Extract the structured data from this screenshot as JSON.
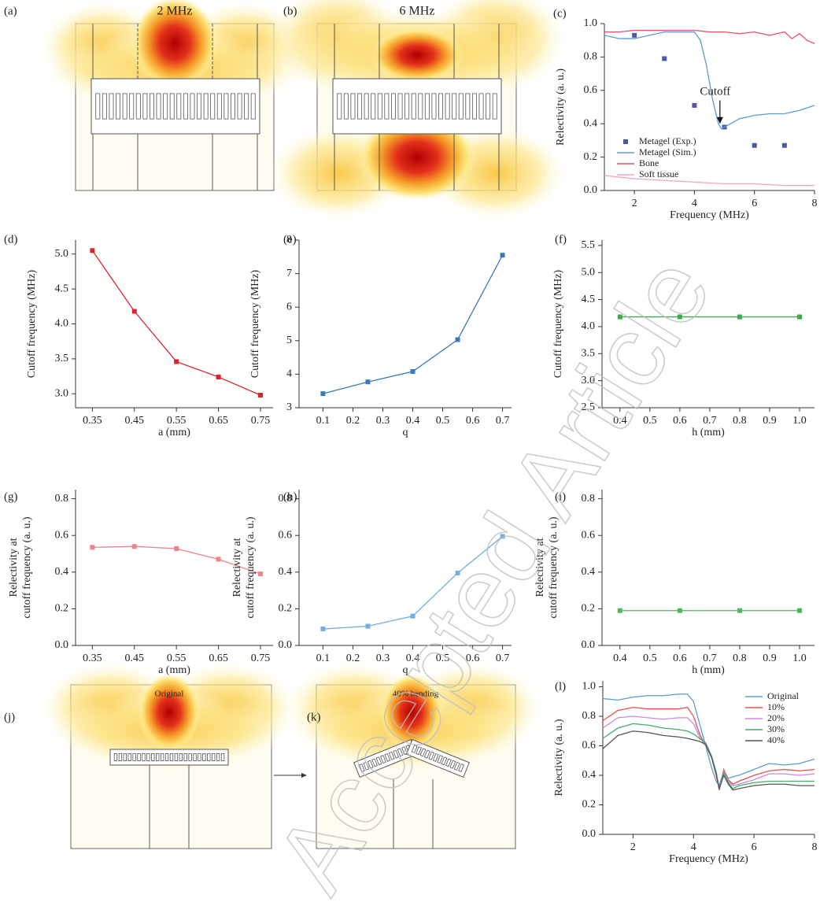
{
  "images": [
    {
      "panel": "(a)",
      "title": "2 MHz"
    },
    {
      "panel": "(b)",
      "title": "6 MHz"
    },
    {
      "panel": "(j)",
      "title": "Original"
    },
    {
      "panel": "(k)",
      "title": "40% bending"
    }
  ],
  "watermark": "Accepted Article",
  "chart_data": [
    {
      "panel": "(c)",
      "type": "line",
      "xlabel": "Frequency (MHz)",
      "ylabel": "Relectivity (a. u.)",
      "xlim": [
        1,
        8
      ],
      "ylim": [
        0,
        1.0
      ],
      "xticks": [
        2,
        4,
        6,
        8
      ],
      "yticks": [
        {
          "value": 0,
          "label": "0.0"
        },
        0.2,
        0.4,
        0.6,
        0.8,
        {
          "value": 1,
          "label": "1.0"
        }
      ],
      "legend": "lower left",
      "annotation": "Cutoff",
      "series": [
        {
          "name": "Metagel (Exp.)",
          "color": "#4a5aa8",
          "style": "markers",
          "x": [
            2,
            3,
            4,
            5,
            6,
            7
          ],
          "values": [
            0.93,
            0.79,
            0.51,
            0.38,
            0.27,
            0.27
          ]
        },
        {
          "name": "Metagel (Sim.)",
          "color": "#5b9bd5",
          "x": [
            1,
            1.5,
            2,
            2.5,
            3,
            3.5,
            4,
            4.2,
            4.4,
            4.6,
            4.8,
            4.9,
            5,
            5.2,
            5.5,
            6,
            6.5,
            7,
            7.5,
            8
          ],
          "values": [
            0.93,
            0.91,
            0.91,
            0.93,
            0.95,
            0.95,
            0.95,
            0.9,
            0.75,
            0.55,
            0.4,
            0.37,
            0.38,
            0.4,
            0.43,
            0.45,
            0.46,
            0.46,
            0.48,
            0.51
          ]
        },
        {
          "name": "Bone",
          "color": "#e8506a",
          "x": [
            1,
            1.5,
            2,
            2.5,
            3,
            3.5,
            4,
            4.5,
            5,
            5.5,
            6,
            6.5,
            7,
            7.25,
            7.5,
            7.75,
            8
          ],
          "values": [
            0.95,
            0.95,
            0.96,
            0.96,
            0.96,
            0.96,
            0.96,
            0.95,
            0.95,
            0.94,
            0.95,
            0.93,
            0.95,
            0.91,
            0.94,
            0.9,
            0.88
          ]
        },
        {
          "name": "Soft tissue",
          "color": "#f4a6b8",
          "x": [
            1,
            2,
            3,
            4,
            5,
            6,
            7,
            8
          ],
          "values": [
            0.09,
            0.07,
            0.06,
            0.05,
            0.04,
            0.04,
            0.03,
            0.03
          ]
        }
      ]
    },
    {
      "panel": "(d)",
      "type": "line",
      "markers": true,
      "xlabel": "a (mm)",
      "ylabel": "Cutoff frequency (MHz)",
      "xlim": [
        0.31,
        0.78
      ],
      "ylim": [
        2.8,
        5.2
      ],
      "xticks": [
        0.35,
        0.45,
        0.55,
        0.65,
        0.75
      ],
      "yticks": [
        {
          "value": 3,
          "label": "3.0"
        },
        3.5,
        {
          "value": 4,
          "label": "4.0"
        },
        4.5,
        {
          "value": 5,
          "label": "5.0"
        }
      ],
      "x": [
        0.35,
        0.45,
        0.55,
        0.65,
        0.75
      ],
      "values": [
        5.05,
        4.18,
        3.46,
        3.24,
        2.98
      ],
      "color": "#d7262b"
    },
    {
      "panel": "(e)",
      "type": "line",
      "markers": true,
      "xlabel": "q",
      "ylabel": "Cutoff frequency (MHz)",
      "xlim": [
        0.02,
        0.73
      ],
      "ylim": [
        3,
        8
      ],
      "xticks": [
        0.1,
        0.2,
        0.3,
        0.4,
        0.5,
        0.6,
        0.7
      ],
      "yticks": [
        3,
        4,
        5,
        6,
        7,
        8
      ],
      "x": [
        0.1,
        0.25,
        0.4,
        0.55,
        0.7
      ],
      "values": [
        3.42,
        3.77,
        4.08,
        5.03,
        7.55
      ],
      "color": "#3a7bbf"
    },
    {
      "panel": "(f)",
      "type": "line",
      "markers": true,
      "xlabel": "h (mm)",
      "ylabel": "Cutoff frequency (MHz)",
      "xlim": [
        0.34,
        1.05
      ],
      "ylim": [
        2.5,
        5.6
      ],
      "xticks": [
        0.4,
        0.5,
        0.6,
        0.7,
        0.8,
        0.9,
        {
          "value": 1,
          "label": "1.0"
        }
      ],
      "yticks": [
        2.5,
        {
          "value": 3,
          "label": "3.0"
        },
        3.5,
        {
          "value": 4,
          "label": "4.0"
        },
        4.5,
        {
          "value": 5,
          "label": "5.0"
        },
        5.5
      ],
      "x": [
        0.4,
        0.6,
        0.8,
        1.0
      ],
      "values": [
        4.18,
        4.18,
        4.18,
        4.18
      ],
      "color": "#3daa4a"
    },
    {
      "panel": "(g)",
      "type": "line",
      "markers": true,
      "xlabel": "a (mm)",
      "ylabel": [
        "Relectivity at",
        "cutoff frequency (a. u.)"
      ],
      "xlim": [
        0.31,
        0.78
      ],
      "ylim": [
        0,
        0.85
      ],
      "xticks": [
        0.35,
        0.45,
        0.55,
        0.65,
        0.75
      ],
      "yticks": [
        {
          "value": 0,
          "label": "0.0"
        },
        0.2,
        0.4,
        0.6,
        0.8
      ],
      "x": [
        0.35,
        0.45,
        0.55,
        0.65,
        0.75
      ],
      "values": [
        0.535,
        0.54,
        0.528,
        0.47,
        0.39
      ],
      "color": "#f0838a"
    },
    {
      "panel": "(h)",
      "type": "line",
      "markers": true,
      "xlabel": "q",
      "ylabel": [
        "Relectivity at",
        "cutoff frequency (a. u.)"
      ],
      "xlim": [
        0.02,
        0.73
      ],
      "ylim": [
        0,
        0.85
      ],
      "xticks": [
        0.1,
        0.2,
        0.3,
        0.4,
        0.5,
        0.6,
        0.7
      ],
      "yticks": [
        {
          "value": 0,
          "label": "0.0"
        },
        0.2,
        0.4,
        0.6,
        0.8
      ],
      "x": [
        0.1,
        0.25,
        0.4,
        0.55,
        0.7
      ],
      "values": [
        0.09,
        0.105,
        0.16,
        0.395,
        0.595
      ],
      "color": "#75aee0"
    },
    {
      "panel": "(i)",
      "type": "line",
      "markers": true,
      "xlabel": "h (mm)",
      "ylabel": [
        "Relectivity at",
        "cutoff frequency (a. u.)"
      ],
      "xlim": [
        0.34,
        1.05
      ],
      "ylim": [
        0,
        0.85
      ],
      "xticks": [
        0.4,
        0.5,
        0.6,
        0.7,
        0.8,
        0.9,
        {
          "value": 1,
          "label": "1.0"
        }
      ],
      "yticks": [
        {
          "value": 0,
          "label": "0.0"
        },
        0.2,
        0.4,
        0.6,
        0.8
      ],
      "x": [
        0.4,
        0.6,
        0.8,
        1.0
      ],
      "values": [
        0.19,
        0.19,
        0.19,
        0.19
      ],
      "color": "#4cb85c"
    },
    {
      "panel": "(l)",
      "type": "line",
      "xlabel": "Frequency (MHz)",
      "ylabel": "Relectivity (a. u.)",
      "xlim": [
        1,
        8
      ],
      "ylim": [
        0,
        1.04
      ],
      "xticks": [
        2,
        4,
        6,
        8
      ],
      "yticks": [
        {
          "value": 0,
          "label": "0.0"
        },
        0.2,
        0.4,
        0.6,
        0.8,
        {
          "value": 1,
          "label": "1.0"
        }
      ],
      "legend": "upper right",
      "x": [
        1,
        1.5,
        2,
        2.5,
        3,
        3.5,
        3.8,
        4,
        4.2,
        4.4,
        4.6,
        4.75,
        4.85,
        5,
        5.15,
        5.3,
        5.5,
        6,
        6.5,
        7,
        7.5,
        8
      ],
      "series": [
        {
          "name": "Original",
          "color": "#5b9bd5",
          "values": [
            0.92,
            0.91,
            0.93,
            0.94,
            0.94,
            0.95,
            0.95,
            0.9,
            0.75,
            0.6,
            0.45,
            0.36,
            0.33,
            0.43,
            0.38,
            0.39,
            0.4,
            0.44,
            0.48,
            0.47,
            0.48,
            0.51
          ]
        },
        {
          "name": "10%",
          "color": "#e8504d",
          "values": [
            0.77,
            0.84,
            0.86,
            0.85,
            0.85,
            0.85,
            0.86,
            0.8,
            0.68,
            0.6,
            0.52,
            0.4,
            0.3,
            0.44,
            0.37,
            0.34,
            0.36,
            0.4,
            0.43,
            0.44,
            0.43,
            0.44
          ]
        },
        {
          "name": "20%",
          "color": "#cc88dd",
          "values": [
            0.72,
            0.79,
            0.8,
            0.79,
            0.78,
            0.79,
            0.79,
            0.75,
            0.66,
            0.6,
            0.52,
            0.42,
            0.3,
            0.43,
            0.36,
            0.33,
            0.34,
            0.37,
            0.41,
            0.41,
            0.4,
            0.41
          ]
        },
        {
          "name": "30%",
          "color": "#3fae6a",
          "values": [
            0.65,
            0.72,
            0.75,
            0.74,
            0.72,
            0.71,
            0.7,
            0.68,
            0.65,
            0.62,
            0.53,
            0.42,
            0.31,
            0.42,
            0.35,
            0.31,
            0.33,
            0.35,
            0.36,
            0.36,
            0.36,
            0.36
          ]
        },
        {
          "name": "40%",
          "color": "#555555",
          "values": [
            0.58,
            0.67,
            0.7,
            0.69,
            0.67,
            0.66,
            0.65,
            0.64,
            0.63,
            0.61,
            0.52,
            0.41,
            0.31,
            0.4,
            0.34,
            0.3,
            0.31,
            0.33,
            0.34,
            0.34,
            0.33,
            0.33
          ]
        }
      ]
    }
  ]
}
